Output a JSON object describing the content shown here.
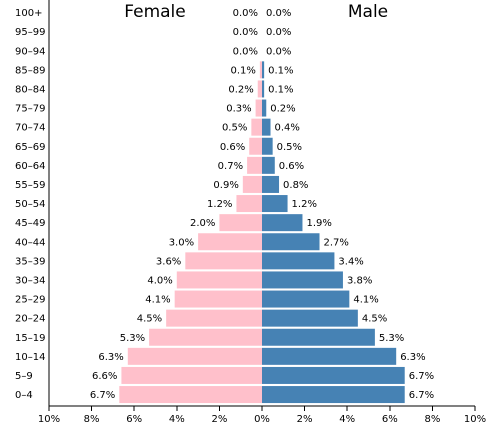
{
  "chart_data": {
    "type": "bar",
    "orientation": "horizontal",
    "layout": "population-pyramid",
    "categories": [
      "100+",
      "95-99",
      "90-94",
      "85-89",
      "80-84",
      "75-79",
      "70-74",
      "65-69",
      "60-64",
      "55-59",
      "50-54",
      "45-49",
      "40-44",
      "35-39",
      "30-34",
      "25-29",
      "20-24",
      "15-19",
      "10-14",
      "5-9",
      "0-4"
    ],
    "series": [
      {
        "name": "Female",
        "side": "left",
        "color": "#ffc0cb",
        "values": [
          0.0,
          0.0,
          0.0,
          0.1,
          0.2,
          0.3,
          0.5,
          0.6,
          0.7,
          0.9,
          1.2,
          2.0,
          3.0,
          3.6,
          4.0,
          4.1,
          4.5,
          5.3,
          6.3,
          6.6,
          6.7
        ]
      },
      {
        "name": "Male",
        "side": "right",
        "color": "#4682b4",
        "values": [
          0.0,
          0.0,
          0.0,
          0.1,
          0.1,
          0.2,
          0.4,
          0.5,
          0.6,
          0.8,
          1.2,
          1.9,
          2.7,
          3.4,
          3.8,
          4.1,
          4.5,
          5.3,
          6.3,
          6.7,
          6.7
        ]
      }
    ],
    "xlim": [
      0,
      10
    ],
    "x_ticks": [
      10,
      8,
      6,
      4,
      2,
      0,
      2,
      4,
      6,
      8,
      10
    ],
    "value_suffix": "%",
    "grid": false
  }
}
